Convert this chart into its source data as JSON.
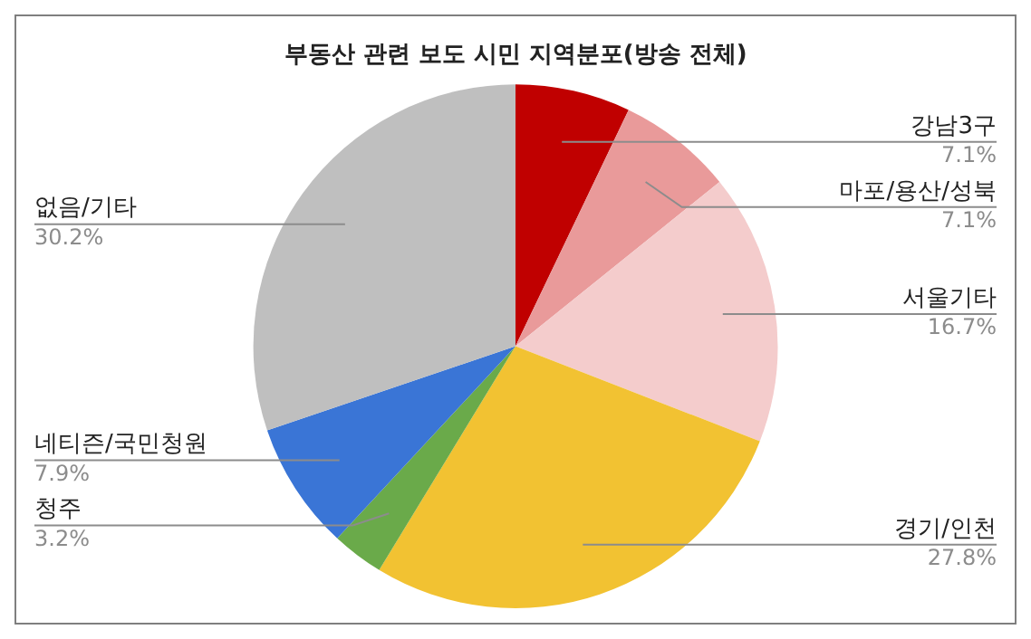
{
  "chart_data": {
    "type": "pie",
    "title": "부동산 관련 보도 시민 지역분포(방송 전체)",
    "categories": [
      "강남3구",
      "마포/용산/성북",
      "서울기타",
      "경기/인천",
      "청주",
      "네티즌/국민청원",
      "없음/기타"
    ],
    "values": [
      7.1,
      7.1,
      16.7,
      27.8,
      3.2,
      7.9,
      30.2
    ],
    "value_labels": [
      "7.1%",
      "7.1%",
      "16.7%",
      "27.8%",
      "3.2%",
      "7.9%",
      "30.2%"
    ],
    "colors": [
      "#c00000",
      "#e99a9a",
      "#f4cccc",
      "#f2c232",
      "#6aaa4a",
      "#3a75d6",
      "#bfbfbf"
    ],
    "legend": false
  }
}
